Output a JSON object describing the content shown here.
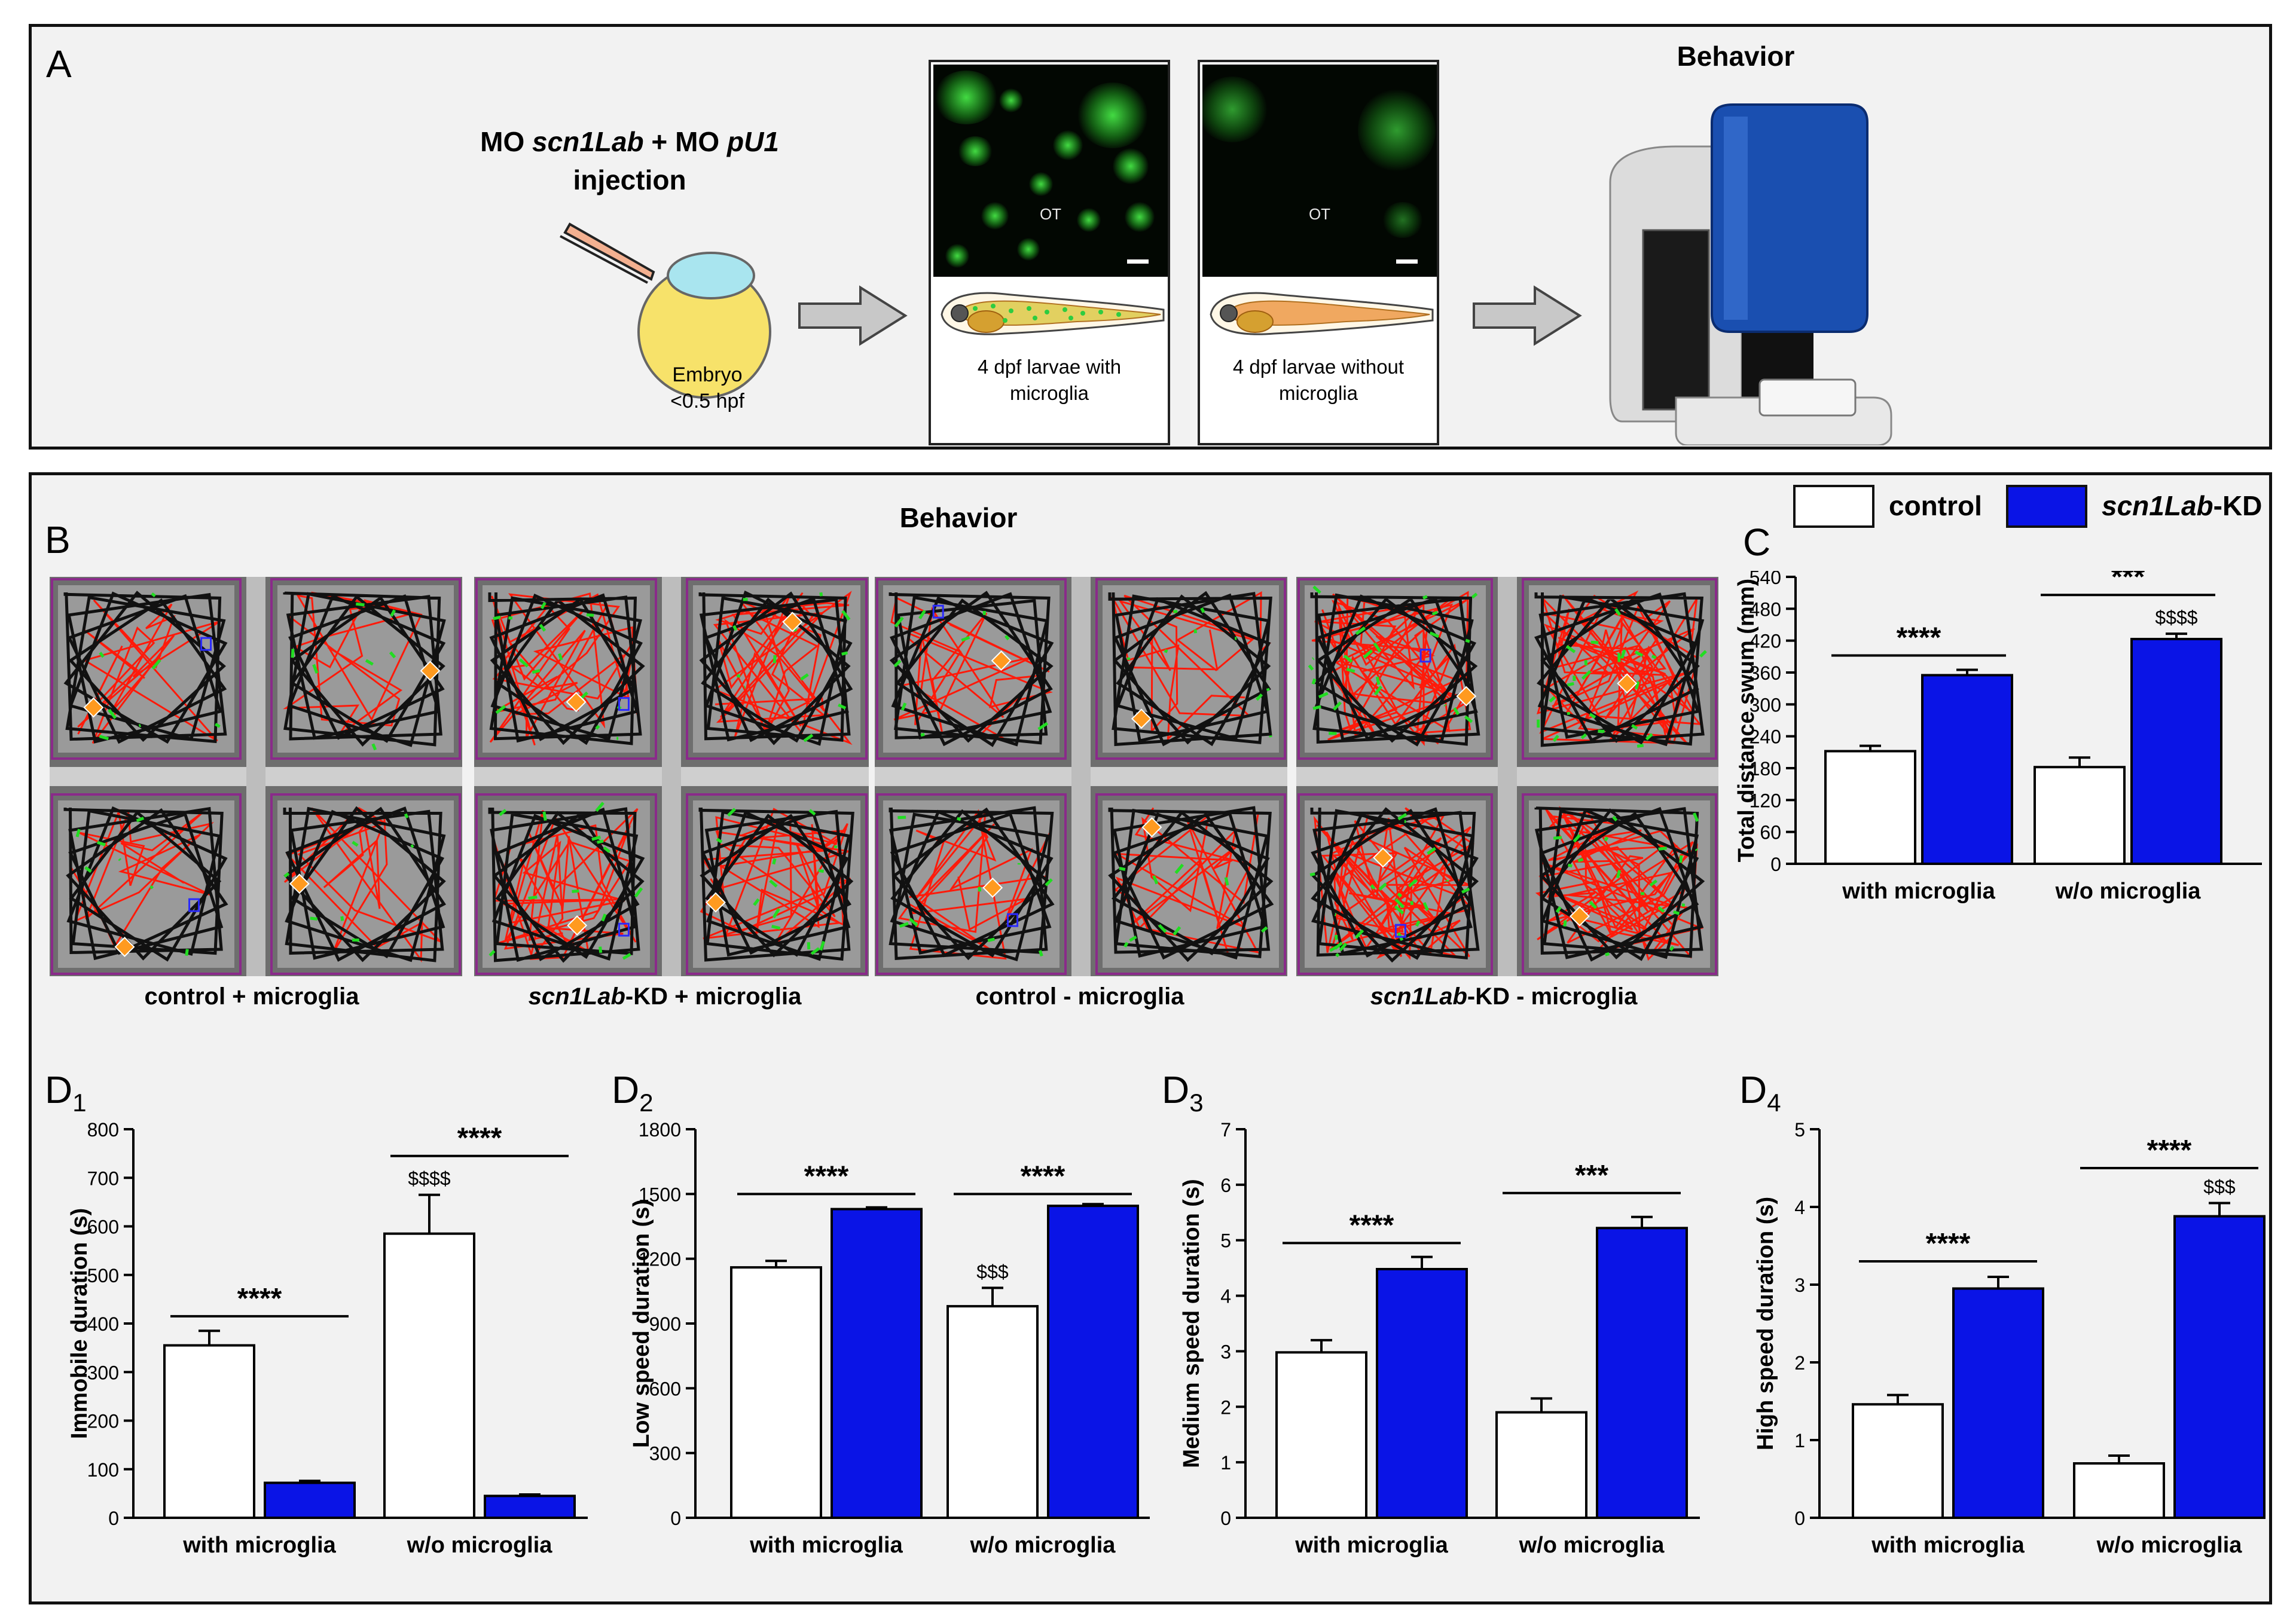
{
  "panel_a": {
    "label": "A",
    "injection_line1_prefix": "MO ",
    "injection_gene1": "scn1Lab",
    "injection_mid": " + MO ",
    "injection_gene2": "pU1",
    "injection_line2": "injection",
    "embryo_label_1": "Embryo",
    "embryo_label_2": "<0.5 hpf",
    "image1_ot": "OT",
    "image1_caption_1": "4 dpf larvae with",
    "image1_caption_2": "microglia",
    "image2_ot": "OT",
    "image2_caption_1": "4 dpf larvae without",
    "image2_caption_2": "microglia",
    "behavior_title": "Behavior"
  },
  "panel_b": {
    "label": "B",
    "title": "Behavior",
    "groups": [
      {
        "gene": "",
        "label": "control + microglia"
      },
      {
        "gene": "scn1Lab",
        "label": "-KD + microglia"
      },
      {
        "gene": "",
        "label": "control - microglia"
      },
      {
        "gene": "scn1Lab",
        "label": "-KD - microglia"
      }
    ]
  },
  "legend": {
    "control_label": "control",
    "kd_gene": "scn1Lab",
    "kd_suffix": "-KD",
    "control_color": "#ffffff",
    "kd_color": "#0a14e6"
  },
  "colors": {
    "control": "#ffffff",
    "kd": "#0a14e6",
    "track_fast": "#ff1a0a",
    "track_mid": "#22dd22",
    "track_slow": "#111111",
    "well_border": "#8a2a8a"
  },
  "chart_data": [
    {
      "id": "C",
      "label": "C",
      "type": "bar",
      "ylabel": "Total distance swum (mm)",
      "ylim": [
        0,
        540
      ],
      "yticks": [
        0,
        60,
        120,
        180,
        240,
        300,
        360,
        420,
        480,
        540
      ],
      "categories": [
        "with microglia",
        "w/o microglia"
      ],
      "series": [
        {
          "name": "control",
          "values": [
            212,
            182
          ],
          "errors": [
            10,
            18
          ]
        },
        {
          "name": "scn1Lab-KD",
          "values": [
            355,
            423
          ],
          "errors": [
            10,
            10
          ]
        }
      ],
      "annotations": [
        {
          "category": 0,
          "text": "****",
          "y": 392
        },
        {
          "category": 1,
          "text": "***",
          "y": 506
        }
      ],
      "dollar": [
        {
          "category": 1,
          "series": 1,
          "text": "$$$$"
        }
      ]
    },
    {
      "id": "D1",
      "label": "D",
      "subscript": "1",
      "type": "bar",
      "ylabel": "Immobile duration (s)",
      "ylim": [
        0,
        800
      ],
      "yticks": [
        0,
        100,
        200,
        300,
        400,
        500,
        600,
        700,
        800
      ],
      "categories": [
        "with microglia",
        "w/o microglia"
      ],
      "series": [
        {
          "name": "control",
          "values": [
            355,
            585
          ],
          "errors": [
            30,
            80
          ]
        },
        {
          "name": "scn1Lab-KD",
          "values": [
            72,
            45
          ],
          "errors": [
            4,
            3
          ]
        }
      ],
      "annotations": [
        {
          "category": 0,
          "text": "****",
          "y": 415
        },
        {
          "category": 1,
          "text": "****",
          "y": 745
        }
      ],
      "dollar": [
        {
          "category": 1,
          "series": 0,
          "text": "$$$$"
        }
      ]
    },
    {
      "id": "D2",
      "label": "D",
      "subscript": "2",
      "type": "bar",
      "ylabel": "Low speed duration (s)",
      "ylim": [
        0,
        1800
      ],
      "yticks": [
        0,
        300,
        600,
        900,
        1200,
        1500,
        1800
      ],
      "categories": [
        "with microglia",
        "w/o microglia"
      ],
      "series": [
        {
          "name": "control",
          "values": [
            1160,
            980
          ],
          "errors": [
            30,
            85
          ]
        },
        {
          "name": "scn1Lab-KD",
          "values": [
            1430,
            1445
          ],
          "errors": [
            8,
            8
          ]
        }
      ],
      "annotations": [
        {
          "category": 0,
          "text": "****",
          "y": 1500
        },
        {
          "category": 1,
          "text": "****",
          "y": 1500
        }
      ],
      "dollar": [
        {
          "category": 1,
          "series": 0,
          "text": "$$$"
        }
      ]
    },
    {
      "id": "D3",
      "label": "D",
      "subscript": "3",
      "type": "bar",
      "ylabel": "Medium speed duration (s)",
      "ylim": [
        0,
        7
      ],
      "yticks": [
        0,
        1,
        2,
        3,
        4,
        5,
        6,
        7
      ],
      "categories": [
        "with microglia",
        "w/o microglia"
      ],
      "series": [
        {
          "name": "control",
          "values": [
            2.98,
            1.9
          ],
          "errors": [
            0.22,
            0.25
          ]
        },
        {
          "name": "scn1Lab-KD",
          "values": [
            4.48,
            5.22
          ],
          "errors": [
            0.22,
            0.2
          ]
        }
      ],
      "annotations": [
        {
          "category": 0,
          "text": "****",
          "y": 4.95
        },
        {
          "category": 1,
          "text": "***",
          "y": 5.85
        }
      ],
      "dollar": []
    },
    {
      "id": "D4",
      "label": "D",
      "subscript": "4",
      "type": "bar",
      "ylabel": "High speed duration (s)",
      "ylim": [
        0,
        5
      ],
      "yticks": [
        0,
        1,
        2,
        3,
        4,
        5
      ],
      "categories": [
        "with microglia",
        "w/o microglia"
      ],
      "series": [
        {
          "name": "control",
          "values": [
            1.46,
            0.7
          ],
          "errors": [
            0.12,
            0.1
          ]
        },
        {
          "name": "scn1Lab-KD",
          "values": [
            2.95,
            3.88
          ],
          "errors": [
            0.15,
            0.17
          ]
        }
      ],
      "annotations": [
        {
          "category": 0,
          "text": "****",
          "y": 3.3
        },
        {
          "category": 1,
          "text": "****",
          "y": 4.5
        }
      ],
      "dollar": [
        {
          "category": 1,
          "series": 1,
          "text": "$$$"
        }
      ]
    }
  ]
}
